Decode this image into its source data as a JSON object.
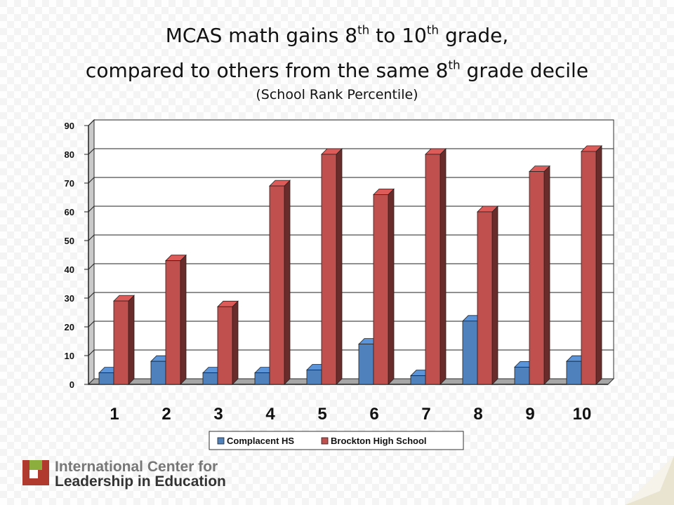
{
  "title": {
    "line1_a": "MCAS math gains 8",
    "line1_sup1": "th",
    "line1_b": " to 10",
    "line1_sup2": "th",
    "line1_c": " grade,",
    "line2_a": "compared to others from the same 8",
    "line2_sup": "th",
    "line2_b": " grade decile",
    "line3": "(School Rank Percentile)"
  },
  "chart_data": {
    "type": "bar",
    "categories": [
      "1",
      "2",
      "3",
      "4",
      "5",
      "6",
      "7",
      "8",
      "9",
      "10"
    ],
    "series": [
      {
        "name": "Complacent HS",
        "values": [
          4,
          8,
          4,
          4,
          5,
          14,
          3,
          22,
          6,
          8
        ],
        "color": "#4f81bd"
      },
      {
        "name": "Brockton High School",
        "values": [
          29,
          43,
          27,
          69,
          80,
          66,
          80,
          60,
          74,
          81
        ],
        "color": "#c0504d"
      }
    ],
    "ylim": [
      0,
      90
    ],
    "yticks": [
      "0",
      "10",
      "20",
      "30",
      "40",
      "50",
      "60",
      "70",
      "80",
      "90"
    ],
    "grid": true,
    "legend": "bottom",
    "style": "3d-bar"
  },
  "logo": {
    "line1": "International Center for",
    "line2": "Leadership in Education"
  }
}
